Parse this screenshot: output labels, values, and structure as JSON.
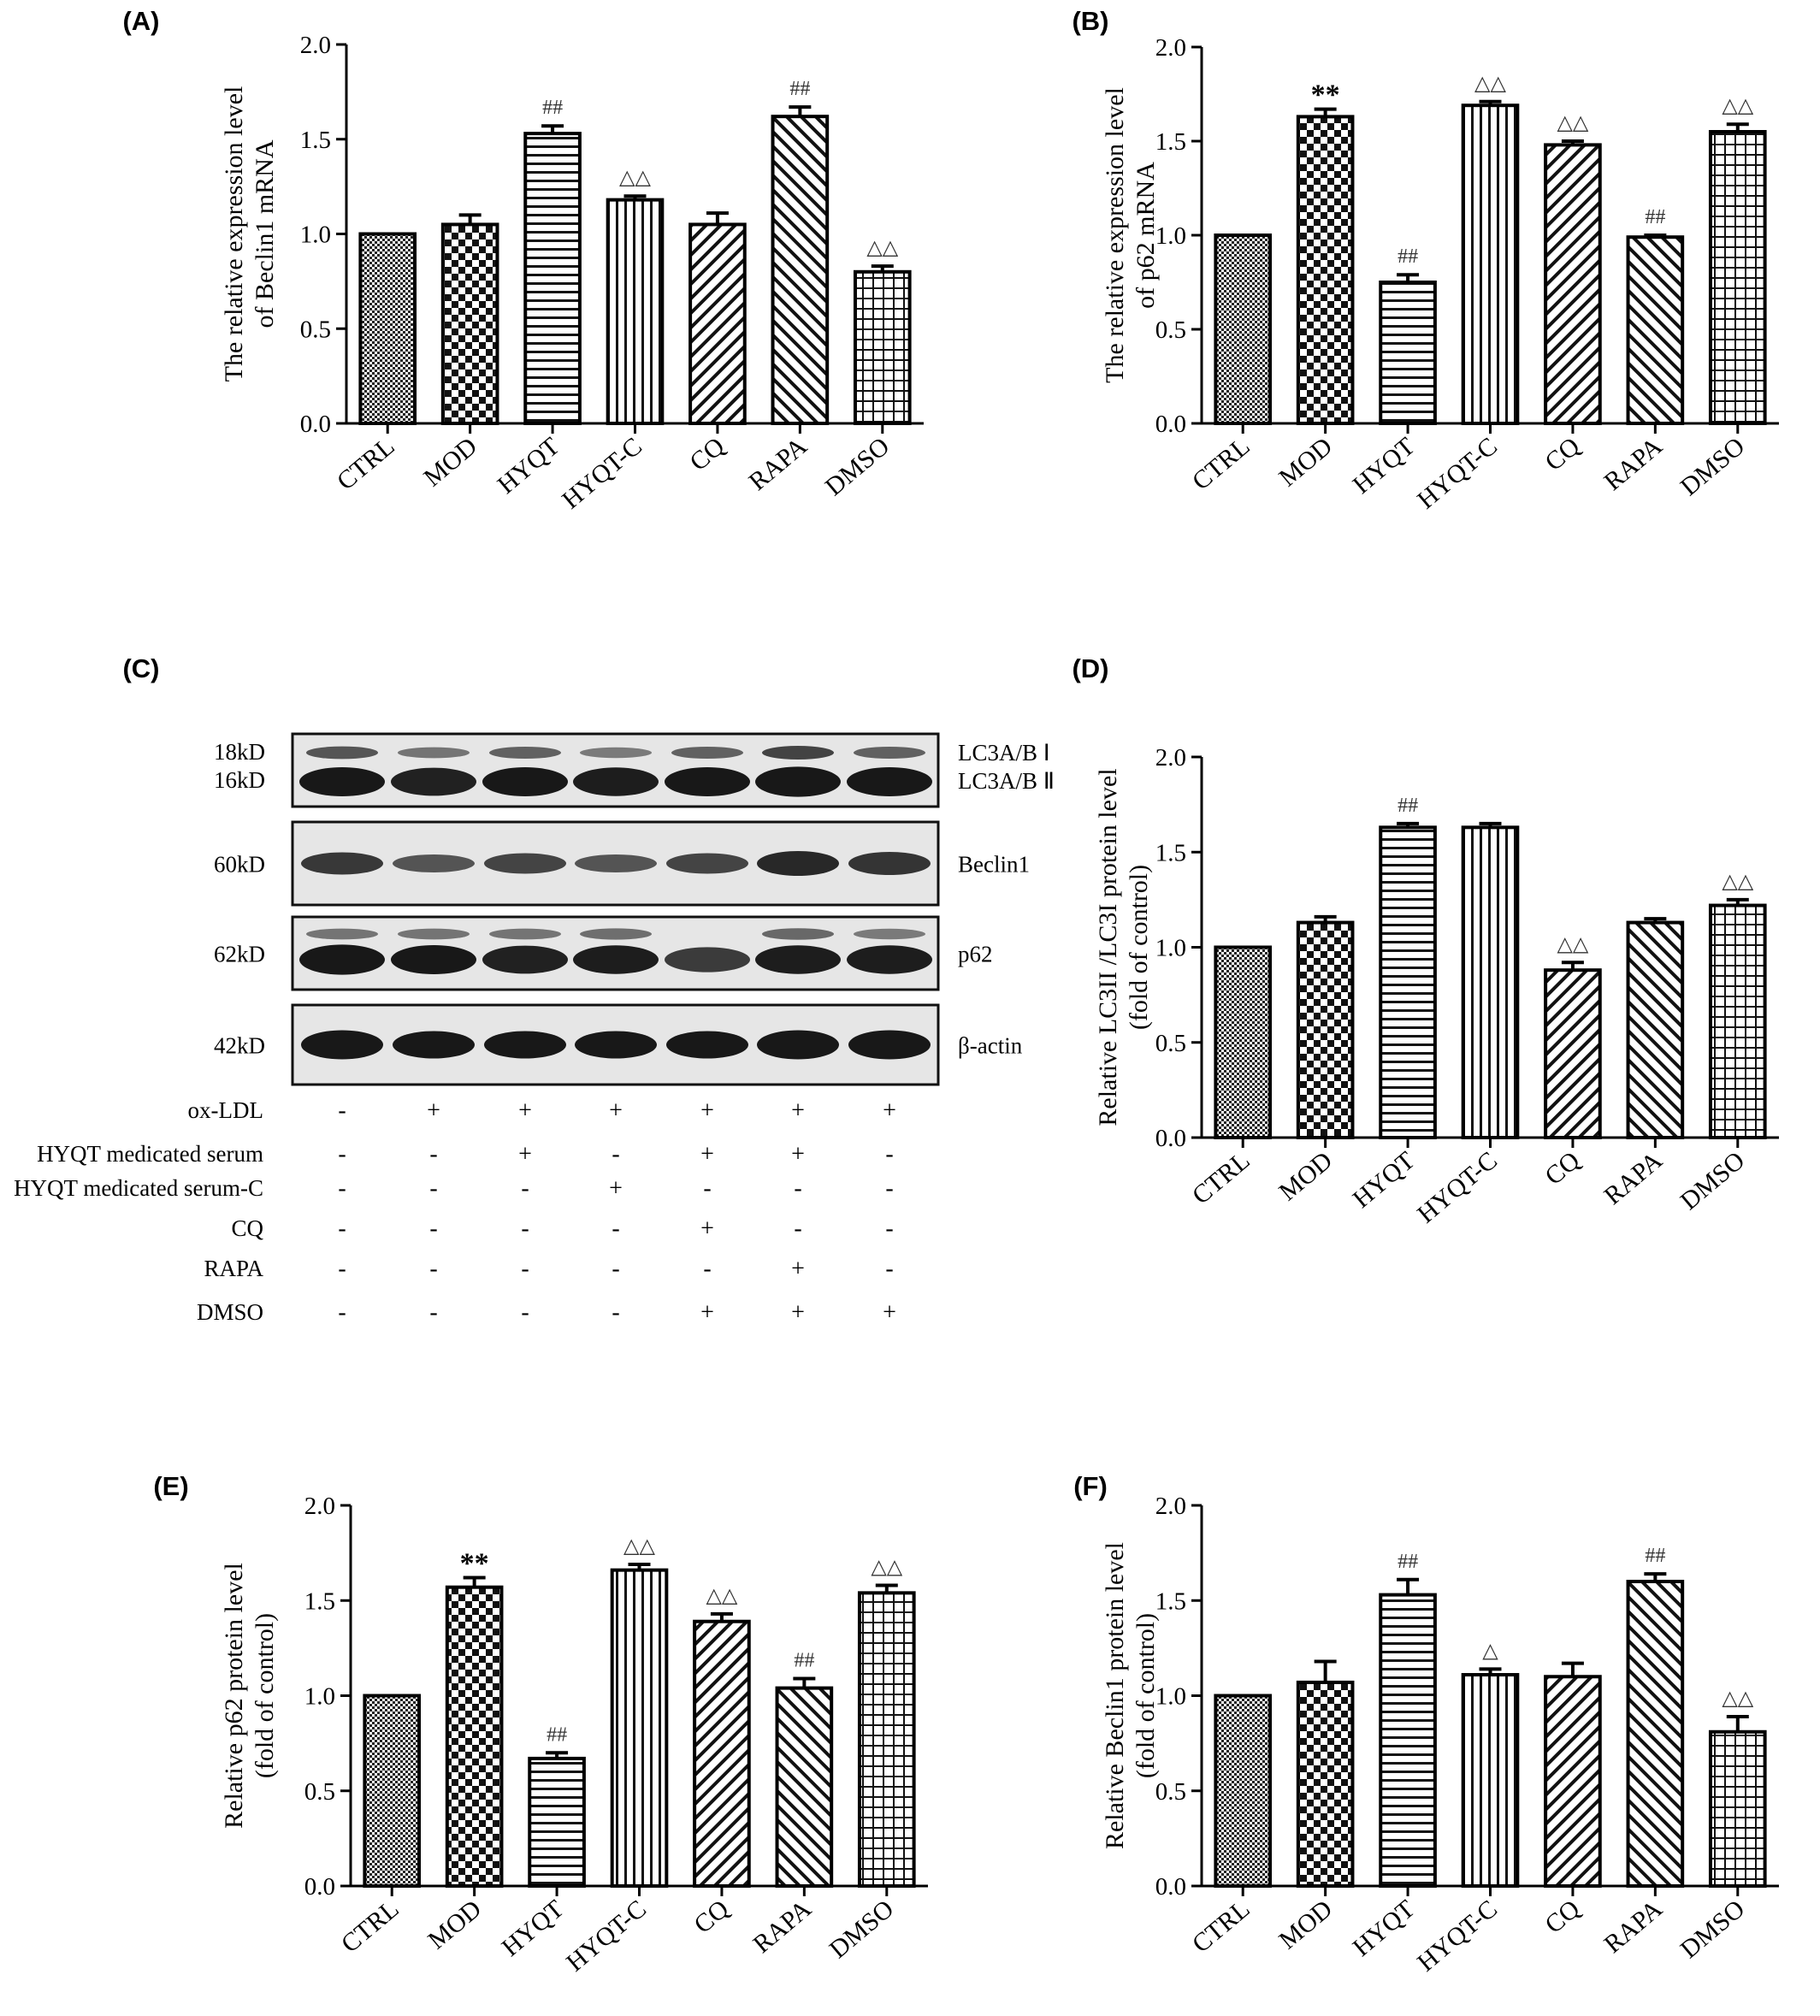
{
  "figure_layout": {
    "bar_categories": [
      "CTRL",
      "MOD",
      "HYQT",
      "HYQT-C",
      "CQ",
      "RAPA",
      "DMSO"
    ],
    "patterns": [
      "fine",
      "check",
      "hlines",
      "vlines",
      "diagonal",
      "backdiag",
      "grid"
    ]
  },
  "chart_data": [
    {
      "panel": "(A)",
      "type": "bar",
      "ylabel": [
        "The relative expression level",
        "of Beclin1 mRNA"
      ],
      "ylim": [
        0,
        2.0
      ],
      "yticks": [
        "0.0",
        "0.5",
        "1.0",
        "1.5",
        "2.0"
      ],
      "categories": [
        "CTRL",
        "MOD",
        "HYQT",
        "HYQT-C",
        "CQ",
        "RAPA",
        "DMSO"
      ],
      "values": [
        1.0,
        1.05,
        1.53,
        1.18,
        1.05,
        1.62,
        0.8
      ],
      "errors": [
        0,
        0.05,
        0.04,
        0.02,
        0.06,
        0.05,
        0.03
      ],
      "annotations": [
        "",
        "",
        "##",
        "△△",
        "",
        "##",
        "△△"
      ]
    },
    {
      "panel": "(B)",
      "type": "bar",
      "ylabel": [
        "The relative expression level",
        "of p62 mRNA"
      ],
      "ylim": [
        0,
        2.0
      ],
      "yticks": [
        "0.0",
        "0.5",
        "1.0",
        "1.5",
        "2.0"
      ],
      "categories": [
        "CTRL",
        "MOD",
        "HYQT",
        "HYQT-C",
        "CQ",
        "RAPA",
        "DMSO"
      ],
      "values": [
        1.0,
        1.63,
        0.75,
        1.69,
        1.48,
        0.99,
        1.55
      ],
      "errors": [
        0,
        0.04,
        0.04,
        0.02,
        0.02,
        0.01,
        0.04
      ],
      "annotations": [
        "",
        "**",
        "##",
        "△△",
        "△△",
        "##",
        "△△"
      ]
    },
    {
      "panel": "(D)",
      "type": "bar",
      "ylabel": [
        "Relative LC3II /LC3I   protein level",
        "(fold of control)"
      ],
      "ylim": [
        0,
        2.0
      ],
      "yticks": [
        "0.0",
        "0.5",
        "1.0",
        "1.5",
        "2.0"
      ],
      "categories": [
        "CTRL",
        "MOD",
        "HYQT",
        "HYQT-C",
        "CQ",
        "RAPA",
        "DMSO"
      ],
      "values": [
        1.0,
        1.13,
        1.63,
        1.63,
        0.88,
        1.13,
        1.22
      ],
      "errors": [
        0,
        0.03,
        0.02,
        0.02,
        0.04,
        0.02,
        0.03
      ],
      "annotations": [
        "",
        "",
        "##",
        "",
        "△△",
        "",
        "△△"
      ]
    },
    {
      "panel": "(E)",
      "type": "bar",
      "ylabel": [
        "Relative p62 protein level",
        "(fold of control)"
      ],
      "ylim": [
        0,
        2.0
      ],
      "yticks": [
        "0.0",
        "0.5",
        "1.0",
        "1.5",
        "2.0"
      ],
      "categories": [
        "CTRL",
        "MOD",
        "HYQT",
        "HYQT-C",
        "CQ",
        "RAPA",
        "DMSO"
      ],
      "values": [
        1.0,
        1.57,
        0.67,
        1.66,
        1.39,
        1.04,
        1.54
      ],
      "errors": [
        0,
        0.05,
        0.03,
        0.03,
        0.04,
        0.05,
        0.04
      ],
      "annotations": [
        "",
        "**",
        "##",
        "△△",
        "△△",
        "##",
        "△△"
      ]
    },
    {
      "panel": "(F)",
      "type": "bar",
      "ylabel": [
        "Relative Beclin1 protein level",
        "(fold of control)"
      ],
      "ylim": [
        0,
        2.0
      ],
      "yticks": [
        "0.0",
        "0.5",
        "1.0",
        "1.5",
        "2.0"
      ],
      "categories": [
        "CTRL",
        "MOD",
        "HYQT",
        "HYQT-C",
        "CQ",
        "RAPA",
        "DMSO"
      ],
      "values": [
        1.0,
        1.07,
        1.53,
        1.11,
        1.1,
        1.6,
        0.81
      ],
      "errors": [
        0,
        0.11,
        0.08,
        0.03,
        0.07,
        0.04,
        0.08
      ],
      "annotations": [
        "",
        "",
        "##",
        "△",
        "",
        "##",
        "△△"
      ]
    }
  ],
  "blot": {
    "panel": "(C)",
    "rows": [
      {
        "left": [
          "18kD",
          "16kD"
        ],
        "right": [
          "LC3A/B Ⅰ",
          "LC3A/B Ⅱ"
        ]
      },
      {
        "left": [
          "60kD"
        ],
        "right": [
          "Beclin1"
        ]
      },
      {
        "left": [
          "62kD"
        ],
        "right": [
          "p62"
        ]
      },
      {
        "left": [
          "42kD"
        ],
        "right": [
          "β-actin"
        ]
      }
    ],
    "treatments": [
      {
        "label": "ox-LDL",
        "marks": [
          "-",
          "+",
          "+",
          "+",
          "+",
          "+",
          "+"
        ]
      },
      {
        "label": "HYQT medicated serum",
        "marks": [
          "-",
          "-",
          "+",
          "-",
          "+",
          "+",
          "-"
        ]
      },
      {
        "label": "HYQT medicated serum-C",
        "marks": [
          "-",
          "-",
          "-",
          "+",
          "-",
          "-",
          "-"
        ]
      },
      {
        "label": "CQ",
        "marks": [
          "-",
          "-",
          "-",
          "-",
          "+",
          "-",
          "-"
        ]
      },
      {
        "label": "RAPA",
        "marks": [
          "-",
          "-",
          "-",
          "-",
          "-",
          "+",
          "-"
        ]
      },
      {
        "label": "DMSO",
        "marks": [
          "-",
          "-",
          "-",
          "-",
          "+",
          "+",
          "+"
        ]
      }
    ]
  }
}
